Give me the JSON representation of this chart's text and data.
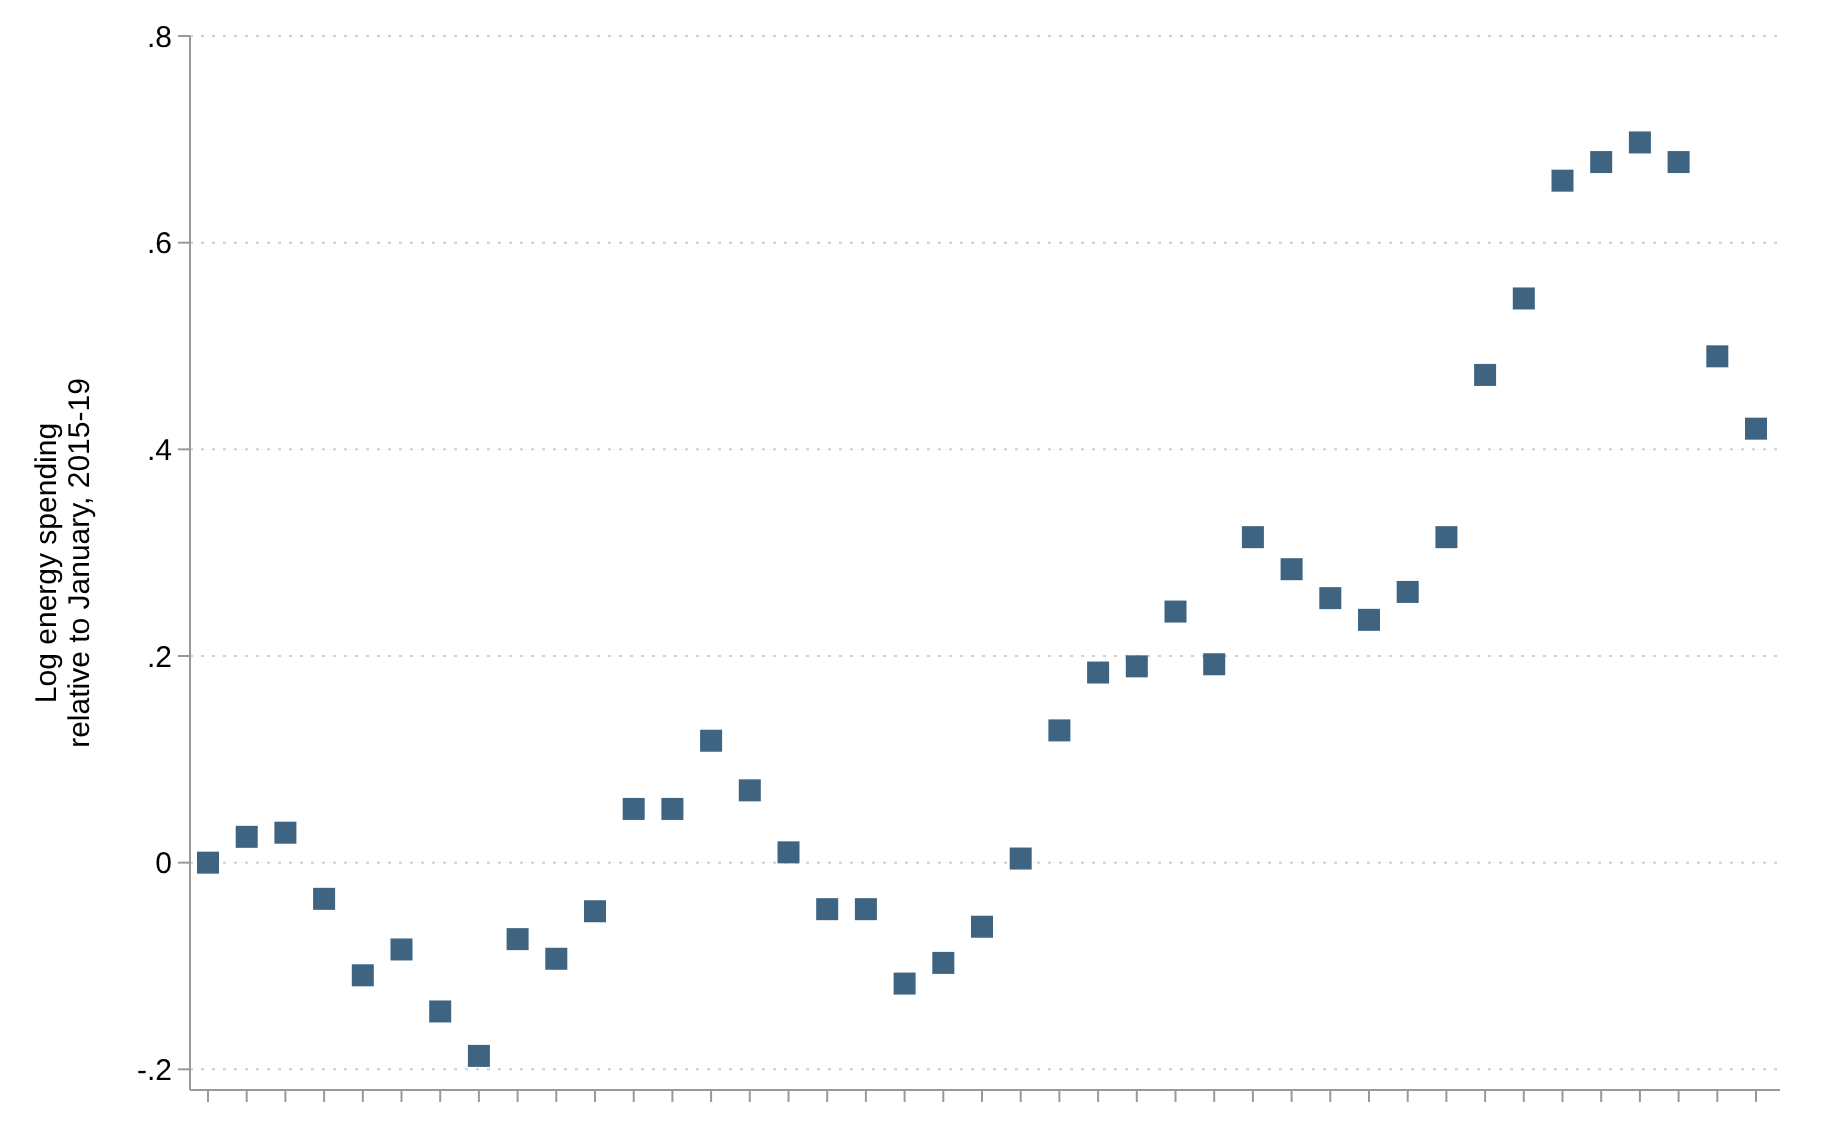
{
  "chart_data": {
    "type": "scatter",
    "ylabel": "Log energy spending\nrelative to January, 2015-19",
    "categories": [
      null,
      null,
      null,
      null,
      null,
      null,
      null,
      null,
      null,
      null,
      null,
      null,
      null,
      null,
      null,
      null,
      null,
      null,
      null,
      null,
      null,
      null,
      null,
      null,
      null,
      null,
      null,
      null,
      null,
      null,
      null,
      null,
      null,
      null,
      null,
      null,
      null,
      null,
      null,
      null,
      null
    ],
    "series": [
      {
        "color": "#3e6481",
        "values": [
          0,
          0.025,
          0.029,
          -0.035,
          -0.109,
          -0.084,
          -0.144,
          -0.187,
          -0.074,
          -0.093,
          -0.047,
          0.052,
          0.052,
          0.118,
          0.07,
          0.01,
          -0.045,
          -0.045,
          -0.117,
          -0.097,
          -0.062,
          0.004,
          0.128,
          0.184,
          0.19,
          0.243,
          0.192,
          0.315,
          0.284,
          0.256,
          0.235,
          0.262,
          0.315,
          0.472,
          0.546,
          0.66,
          0.678,
          0.697,
          0.678,
          0.49,
          0.42
        ]
      }
    ],
    "ylim": [
      -0.22,
      0.8
    ],
    "yticks": [
      {
        "value": -0.2,
        "label": "-.2"
      },
      0,
      {
        "value": 0.2,
        "label": ".2"
      },
      {
        "value": 0.4,
        "label": ".4"
      },
      {
        "value": 0.6,
        "label": ".6"
      },
      {
        "value": 0.8,
        "label": ".8"
      }
    ],
    "grid": "y",
    "marker": "square"
  }
}
